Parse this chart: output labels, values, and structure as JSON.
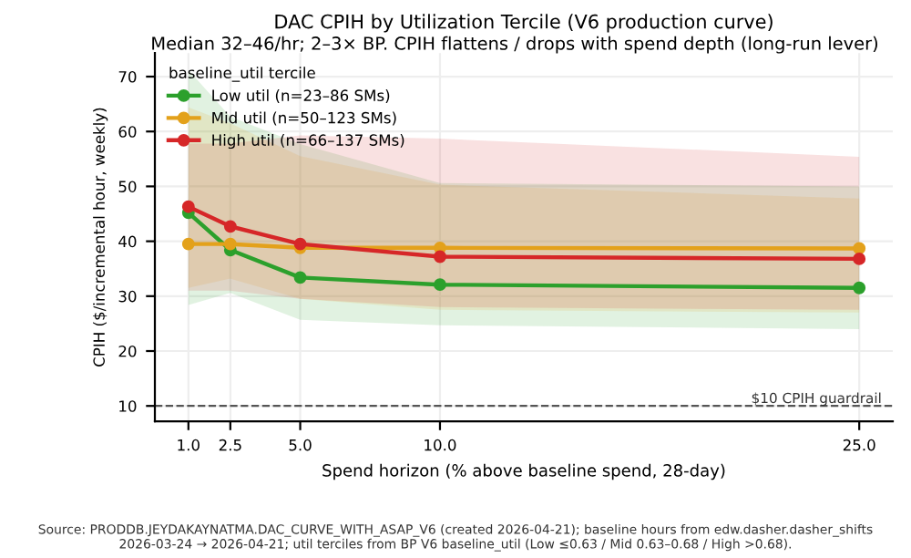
{
  "chart_data": {
    "type": "line",
    "title": "DAC CPIH by Utilization Tercile (V6 production curve)",
    "subtitle": "Median 32–46/hr; 2–3× BP. CPIH flattens / drops with spend depth (long-run lever)",
    "xlabel": "Spend horizon (% above baseline spend, 28-day)",
    "ylabel": "CPIH ($/incremental hour, weekly)",
    "legend_title": "baseline_util tercile",
    "x": [
      1.0,
      2.5,
      5.0,
      10.0,
      25.0
    ],
    "series": [
      {
        "name": "Low util (n=23–86 SMs)",
        "color": "#2ca02c",
        "values": [
          45.2,
          38.4,
          33.4,
          32.1,
          31.5
        ],
        "lower": [
          28.4,
          30.6,
          25.7,
          24.7,
          24.0
        ],
        "upper": [
          71.2,
          62.7,
          57.7,
          50.6,
          50.0
        ]
      },
      {
        "name": "Mid util (n=50–123 SMs)",
        "color": "#e3a11b",
        "values": [
          39.5,
          39.5,
          38.8,
          38.8,
          38.7
        ],
        "lower": [
          31.5,
          33.2,
          29.5,
          27.5,
          27.0
        ],
        "upper": [
          64.4,
          61.5,
          55.5,
          50.3,
          47.8
        ]
      },
      {
        "name": "High util (n=66–137 SMs)",
        "color": "#d62728",
        "values": [
          46.3,
          42.7,
          39.5,
          37.2,
          36.8
        ],
        "lower": [
          31.0,
          31.0,
          29.5,
          28.0,
          27.5
        ],
        "upper": [
          57.8,
          57.8,
          59.3,
          58.7,
          55.4
        ]
      }
    ],
    "xlim": [
      -0.2,
      26.2
    ],
    "ylim": [
      7.2,
      74.3
    ],
    "xticks": [
      {
        "value": 1.0,
        "label": "1.0"
      },
      {
        "value": 2.5,
        "label": "2.5"
      },
      {
        "value": 5.0,
        "label": "5.0"
      },
      {
        "value": 10.0,
        "label": "10.0"
      },
      {
        "value": 25.0,
        "label": "25.0"
      }
    ],
    "yticks": [
      10,
      20,
      30,
      40,
      50,
      60,
      70
    ],
    "ref_lines": [
      {
        "axis": "y",
        "value": 10,
        "label": "$10 CPIH guardrail",
        "color": "#555555",
        "line_style": "dashed"
      }
    ],
    "annotations": [
      "Source: PRODDB.JEYDAKAYNATMA.DAC_CURVE_WITH_ASAP_V6 (created 2026-04-21); baseline hours from edw.dasher.dasher_shifts 2026-03-24 → 2026-04-21; util terciles from BP V6 baseline_util (Low ≤0.63 / Mid 0.63–0.68 / High >0.68)."
    ],
    "grid": true,
    "legend": "top left",
    "marker": "circle",
    "line_style": "solid"
  }
}
